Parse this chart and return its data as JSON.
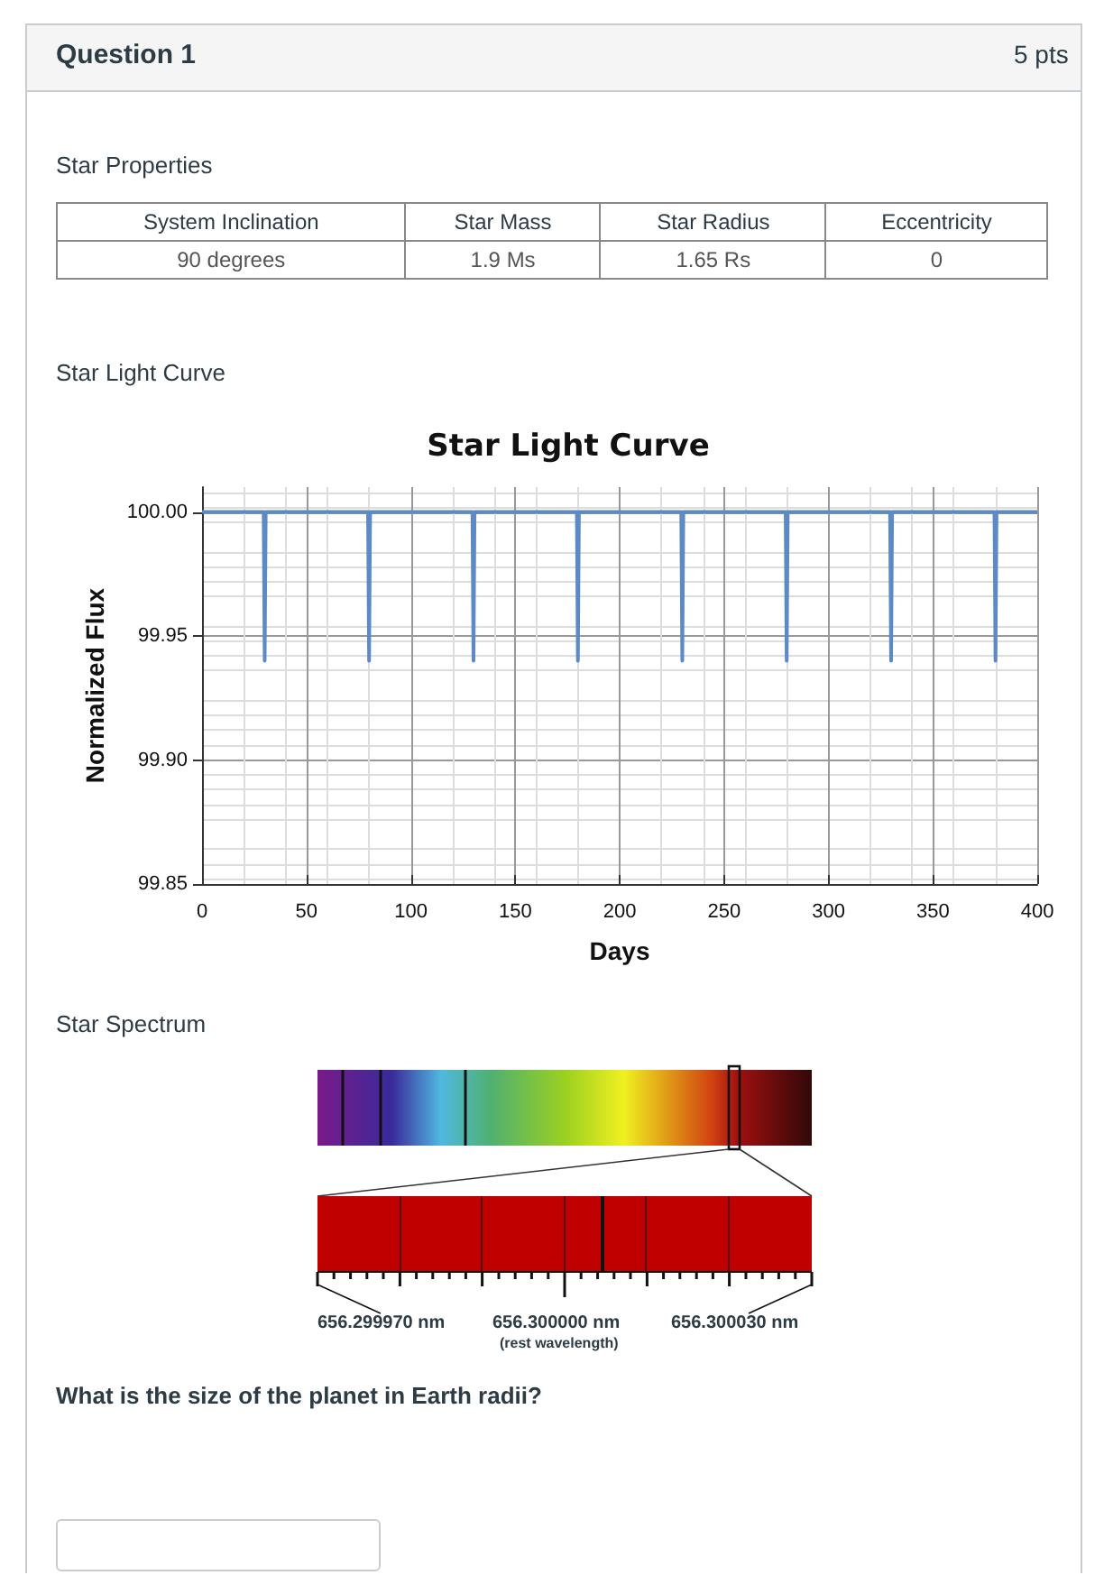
{
  "chart_data": [
    {
      "type": "other",
      "title": "Question 1",
      "annotations": [
        "5 pts",
        "Star Properties",
        "System Inclination",
        "Star Mass",
        "Star Radius",
        "Eccentricity",
        "90 degrees",
        "1.9 Ms",
        "1.65 Rs",
        "0",
        "Star Light Curve"
      ]
    },
    {
      "type": "line",
      "title": "Star Light Curve",
      "xlabel": "Days",
      "ylabel": "Normalized Flux",
      "xlim": [
        0,
        400
      ],
      "xticks": [
        0,
        50,
        100,
        150,
        200,
        250,
        300,
        350,
        400
      ],
      "ylim": [
        99.85,
        100.01
      ],
      "yticks": [
        99.85,
        {
          "value": 99.9,
          "label": "99.90"
        },
        99.95,
        {
          "value": 100,
          "label": "100.00"
        }
      ],
      "grid": true,
      "marker": "none",
      "line_style": "solid",
      "series": [
        {
          "color": "#5b8ac6",
          "x": [
            0,
            29.5,
            30,
            30.5,
            79.5,
            80,
            80.5,
            129.5,
            130,
            130.5,
            179.5,
            180,
            180.5,
            229.5,
            230,
            230.5,
            279.5,
            280,
            280.5,
            329.5,
            330,
            330.5,
            379.5,
            380,
            380.5,
            400
          ],
          "values": [
            100,
            100,
            99.94,
            100,
            100,
            99.94,
            100,
            100,
            99.94,
            100,
            100,
            99.94,
            100,
            100,
            99.94,
            100,
            100,
            99.94,
            100,
            100,
            99.94,
            100,
            100,
            99.94,
            100,
            100
          ]
        }
      ]
    },
    {
      "type": "other",
      "title": "Star Spectrum",
      "annotations": [
        "656.299970 nm",
        "656.300000 nm",
        "(rest wavelength)",
        "656.300030 nm",
        "What is the size of the planet in Earth radii?"
      ]
    }
  ]
}
